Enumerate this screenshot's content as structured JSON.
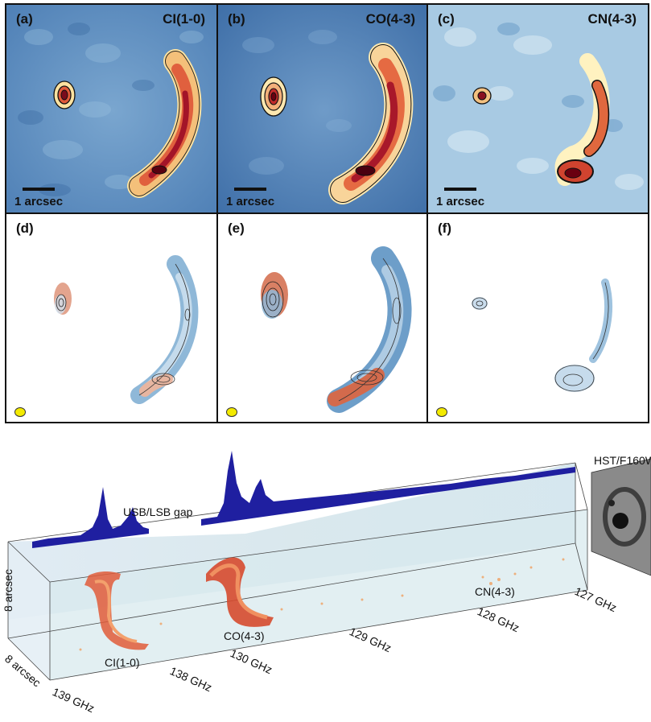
{
  "top_panels": [
    {
      "letter": "(a)",
      "line": "CI(1-0)",
      "scale": "1 arcsec"
    },
    {
      "letter": "(b)",
      "line": "CO(4-3)",
      "scale": "1 arcsec"
    },
    {
      "letter": "(c)",
      "line": "CN(4-3)",
      "scale": "1 arcsec"
    }
  ],
  "mid_panels": [
    {
      "letter": "(d)"
    },
    {
      "letter": "(e)"
    },
    {
      "letter": "(f)"
    }
  ],
  "cube": {
    "gap_label": "USB/LSB gap",
    "line_labels": [
      "CI(1-0)",
      "CO(4-3)",
      "CN(4-3)"
    ],
    "freq_ticks": [
      "139 GHz",
      "138 GHz",
      "130 GHz",
      "129 GHz",
      "128 GHz",
      "127 GHz"
    ],
    "axis_depth": "8 arcsec",
    "axis_height": "8 arcsec",
    "inset_label": "HST/F160W"
  },
  "colors": {
    "map_bg": "#5b8bbd",
    "arc_red": "#b2182b",
    "blue_spec": "#1f1fa0",
    "beam": "#f3ea00"
  }
}
